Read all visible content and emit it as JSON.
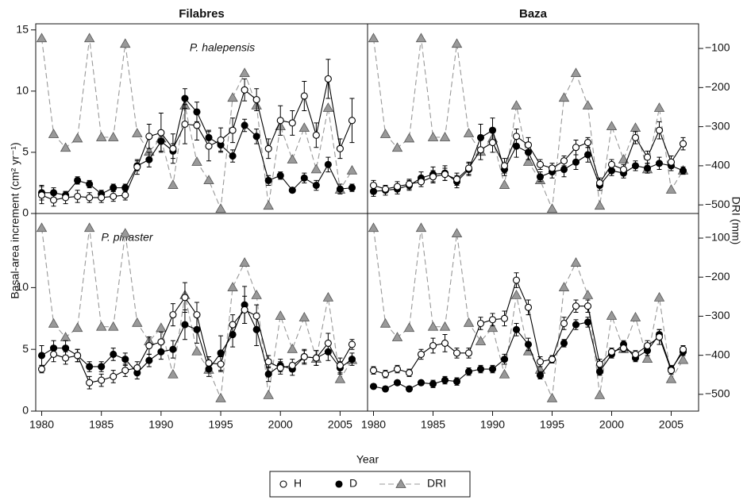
{
  "figure": {
    "ylabel": "Basal-area increment (cm² yr⁻¹)",
    "y2label": "DRI (mm)",
    "xlabel": "Year"
  },
  "chart_data": [
    {
      "type": "line",
      "title": "Filabres",
      "annotation": "P. halepensis",
      "x": [
        1980,
        1981,
        1982,
        1983,
        1984,
        1985,
        1986,
        1987,
        1988,
        1989,
        1990,
        1991,
        1992,
        1993,
        1994,
        1995,
        1996,
        1997,
        1998,
        1999,
        2000,
        2001,
        2002,
        2003,
        2004,
        2005,
        2006
      ],
      "xlim": [
        1979.5,
        2007.3
      ],
      "ylim": [
        0,
        15.5
      ],
      "yticks": [
        0,
        5,
        10,
        15
      ],
      "y2lim": [
        -522,
        -37
      ],
      "series": [
        {
          "name": "H",
          "color": "#ffffff",
          "marker": "circle",
          "values": [
            1.5,
            1.1,
            1.3,
            1.4,
            1.3,
            1.3,
            1.4,
            1.5,
            3.8,
            6.3,
            6.6,
            5.3,
            7.3,
            7.2,
            5.5,
            6.0,
            6.8,
            10.1,
            9.3,
            5.3,
            7.6,
            7.4,
            9.6,
            6.4,
            11.0,
            5.3,
            7.6
          ],
          "errors": [
            0.7,
            0.5,
            0.5,
            0.5,
            0.4,
            0.4,
            0.4,
            0.4,
            0.6,
            1.0,
            1.6,
            1.2,
            1.6,
            1.2,
            1.2,
            1.0,
            1.0,
            0.9,
            0.9,
            0.8,
            1.2,
            1.0,
            1.2,
            1.0,
            1.6,
            0.8,
            1.8
          ]
        },
        {
          "name": "D",
          "color": "#000000",
          "marker": "circle",
          "values": [
            1.7,
            1.7,
            1.5,
            2.7,
            2.4,
            1.6,
            2.1,
            2.1,
            3.9,
            4.4,
            5.9,
            5.1,
            9.4,
            8.3,
            6.2,
            5.6,
            4.7,
            7.2,
            6.3,
            2.7,
            3.1,
            1.9,
            2.9,
            2.3,
            4.0,
            2.0,
            2.1
          ],
          "errors": [
            0.6,
            0.4,
            0.3,
            0.3,
            0.3,
            0.3,
            0.3,
            0.3,
            0.4,
            0.6,
            0.8,
            0.6,
            0.8,
            0.8,
            0.6,
            0.5,
            0.5,
            0.5,
            0.6,
            0.4,
            0.3,
            0.2,
            0.4,
            0.4,
            0.6,
            0.4,
            0.3
          ]
        },
        {
          "name": "DRI",
          "color": "#999999",
          "marker": "triangle",
          "dashed": true,
          "axis": "y2",
          "values": [
            -74,
            -319,
            -354,
            -330,
            -74,
            -327,
            -327,
            -88,
            -317,
            -364,
            -330,
            -449,
            -246,
            -390,
            -437,
            -510,
            -226,
            -163,
            -246,
            -502,
            -299,
            -384,
            -303,
            -409,
            -252,
            -461,
            -412
          ]
        }
      ]
    },
    {
      "type": "line",
      "title": "Baza",
      "x": [
        1980,
        1981,
        1982,
        1983,
        1984,
        1985,
        1986,
        1987,
        1988,
        1989,
        1990,
        1991,
        1992,
        1993,
        1994,
        1995,
        1996,
        1997,
        1998,
        1999,
        2000,
        2001,
        2002,
        2003,
        2004,
        2005,
        2006
      ],
      "xlim": [
        1979.5,
        2007.3
      ],
      "ylim": [
        0,
        15.5
      ],
      "y2lim": [
        -522,
        -37
      ],
      "y2ticks": [
        {
          "value": -100,
          "label": "−100"
        },
        {
          "value": -200,
          "label": "−200"
        },
        {
          "value": -300,
          "label": "−300"
        },
        {
          "value": -400,
          "label": "−400"
        },
        {
          "value": -500,
          "label": "−500"
        }
      ],
      "series": [
        {
          "name": "H",
          "color": "#ffffff",
          "marker": "circle",
          "values": [
            2.3,
            2.0,
            2.2,
            2.4,
            2.6,
            3.0,
            3.2,
            2.8,
            3.7,
            5.2,
            5.8,
            3.9,
            6.3,
            5.6,
            4.0,
            3.7,
            4.3,
            5.4,
            5.8,
            2.5,
            4.0,
            3.6,
            6.2,
            4.6,
            6.8,
            4.2,
            5.7
          ],
          "errors": [
            0.4,
            0.3,
            0.4,
            0.4,
            0.4,
            0.5,
            0.5,
            0.5,
            0.5,
            0.8,
            0.8,
            0.6,
            0.6,
            0.6,
            0.4,
            0.4,
            0.4,
            0.6,
            0.4,
            0.4,
            0.4,
            0.4,
            0.5,
            0.5,
            0.7,
            0.5,
            0.5
          ]
        },
        {
          "name": "D",
          "color": "#000000",
          "marker": "circle",
          "values": [
            1.8,
            1.9,
            2.0,
            2.3,
            2.9,
            3.2,
            3.3,
            2.6,
            3.6,
            6.2,
            6.8,
            3.6,
            5.5,
            5.0,
            3.0,
            3.4,
            3.6,
            4.2,
            4.8,
            2.3,
            3.5,
            3.3,
            3.9,
            3.7,
            4.1,
            3.9,
            3.5
          ],
          "errors": [
            0.4,
            0.4,
            0.4,
            0.4,
            0.5,
            0.6,
            0.6,
            0.5,
            0.5,
            1.1,
            1.0,
            0.5,
            0.9,
            0.6,
            0.4,
            0.5,
            0.6,
            0.6,
            0.6,
            0.4,
            0.4,
            0.4,
            0.4,
            0.4,
            0.5,
            0.4,
            0.3
          ]
        },
        {
          "name": "DRI",
          "color": "#999999",
          "marker": "triangle",
          "dashed": true,
          "axis": "y2",
          "values": [
            -74,
            -319,
            -354,
            -330,
            -74,
            -327,
            -327,
            -88,
            -317,
            -364,
            -330,
            -449,
            -246,
            -390,
            -437,
            -510,
            -226,
            -163,
            -246,
            -502,
            -299,
            -384,
            -303,
            -409,
            -252,
            -461,
            -412
          ]
        }
      ]
    },
    {
      "type": "line",
      "annotation": "P. pinaster",
      "x": [
        1980,
        1981,
        1982,
        1983,
        1984,
        1985,
        1986,
        1987,
        1988,
        1989,
        1990,
        1991,
        1992,
        1993,
        1994,
        1995,
        1996,
        1997,
        1998,
        1999,
        2000,
        2001,
        2002,
        2003,
        2004,
        2005,
        2006
      ],
      "xlim": [
        1979.5,
        2007.3
      ],
      "xticks": [
        1980,
        1985,
        1990,
        1995,
        2000,
        2005
      ],
      "ylim": [
        0,
        16
      ],
      "yticks": [
        0,
        5,
        10
      ],
      "y2lim": [
        -543,
        -37
      ],
      "series": [
        {
          "name": "H",
          "color": "#ffffff",
          "marker": "circle",
          "values": [
            3.4,
            4.6,
            4.3,
            4.5,
            2.3,
            2.5,
            2.8,
            3.3,
            3.5,
            5.3,
            5.6,
            7.8,
            9.2,
            7.8,
            3.9,
            3.8,
            7.0,
            8.2,
            7.7,
            4.0,
            3.5,
            3.7,
            4.4,
            4.3,
            5.5,
            3.7,
            5.4
          ],
          "errors": [
            0.3,
            0.6,
            0.5,
            0.5,
            0.5,
            0.5,
            0.5,
            0.5,
            0.5,
            0.7,
            0.8,
            0.9,
            1.2,
            1.0,
            0.5,
            0.6,
            0.8,
            1.1,
            0.9,
            0.5,
            0.5,
            0.5,
            0.6,
            0.6,
            0.8,
            0.6,
            0.4
          ]
        },
        {
          "name": "D",
          "color": "#000000",
          "marker": "circle",
          "values": [
            4.5,
            5.1,
            5.1,
            4.5,
            3.6,
            3.6,
            4.6,
            4.2,
            3.1,
            4.1,
            4.8,
            5.0,
            7.0,
            6.6,
            3.4,
            4.7,
            6.2,
            8.6,
            6.6,
            3.0,
            3.7,
            3.4,
            4.4,
            4.3,
            4.8,
            3.5,
            4.2
          ],
          "errors": [
            0.8,
            0.6,
            0.6,
            0.5,
            0.4,
            0.4,
            0.5,
            0.5,
            0.5,
            0.5,
            0.6,
            0.7,
            1.2,
            1.1,
            0.6,
            1.4,
            1.0,
            1.5,
            1.3,
            0.6,
            0.5,
            0.5,
            0.5,
            0.6,
            0.7,
            0.5,
            0.5
          ]
        },
        {
          "name": "DRI",
          "color": "#999999",
          "marker": "triangle",
          "dashed": true,
          "axis": "y2",
          "values": [
            -74,
            -319,
            -354,
            -330,
            -74,
            -327,
            -327,
            -88,
            -317,
            -364,
            -330,
            -449,
            -246,
            -390,
            -437,
            -510,
            -226,
            -163,
            -246,
            -502,
            -299,
            -384,
            -303,
            -409,
            -252,
            -461,
            -412
          ]
        }
      ]
    },
    {
      "type": "line",
      "x": [
        1980,
        1981,
        1982,
        1983,
        1984,
        1985,
        1986,
        1987,
        1988,
        1989,
        1990,
        1991,
        1992,
        1993,
        1994,
        1995,
        1996,
        1997,
        1998,
        1999,
        2000,
        2001,
        2002,
        2003,
        2004,
        2005,
        2006
      ],
      "xlim": [
        1979.5,
        2007.3
      ],
      "xticks": [
        1980,
        1985,
        1990,
        1995,
        2000,
        2005
      ],
      "ylim": [
        0,
        16
      ],
      "y2lim": [
        -543,
        -37
      ],
      "y2ticks": [
        {
          "value": -100,
          "label": "−100"
        },
        {
          "value": -200,
          "label": "−200"
        },
        {
          "value": -300,
          "label": "−300"
        },
        {
          "value": -400,
          "label": "−400"
        },
        {
          "value": -500,
          "label": "−500"
        }
      ],
      "series": [
        {
          "name": "H",
          "color": "#ffffff",
          "marker": "circle",
          "values": [
            3.3,
            3.0,
            3.4,
            3.1,
            4.6,
            5.3,
            5.5,
            4.7,
            4.7,
            7.1,
            7.4,
            7.5,
            10.6,
            8.4,
            4.0,
            4.2,
            7.1,
            8.5,
            8.5,
            3.8,
            4.8,
            5.1,
            4.6,
            5.3,
            6.0,
            3.3,
            5.0
          ],
          "errors": [
            0.3,
            0.3,
            0.3,
            0.3,
            0.4,
            0.6,
            0.7,
            0.4,
            0.4,
            0.5,
            0.5,
            0.6,
            0.6,
            0.6,
            0.4,
            0.3,
            0.5,
            0.5,
            0.5,
            0.4,
            0.3,
            0.3,
            0.3,
            0.4,
            0.6,
            0.3,
            0.3
          ]
        },
        {
          "name": "D",
          "color": "#000000",
          "marker": "circle",
          "values": [
            2.0,
            1.8,
            2.3,
            1.8,
            2.3,
            2.2,
            2.5,
            2.4,
            3.2,
            3.4,
            3.4,
            4.2,
            6.6,
            5.4,
            2.9,
            4.2,
            5.5,
            7.0,
            7.2,
            3.2,
            4.6,
            5.4,
            4.3,
            4.9,
            6.2,
            3.4,
            4.8
          ],
          "errors": [
            0.2,
            0.2,
            0.2,
            0.2,
            0.2,
            0.3,
            0.3,
            0.3,
            0.3,
            0.3,
            0.3,
            0.4,
            0.5,
            0.5,
            0.3,
            0.3,
            0.3,
            0.4,
            0.4,
            0.3,
            0.3,
            0.3,
            0.3,
            0.4,
            0.4,
            0.3,
            0.3
          ]
        },
        {
          "name": "DRI",
          "color": "#999999",
          "marker": "triangle",
          "dashed": true,
          "axis": "y2",
          "values": [
            -74,
            -319,
            -354,
            -330,
            -74,
            -327,
            -327,
            -88,
            -317,
            -364,
            -330,
            -449,
            -246,
            -390,
            -437,
            -510,
            -226,
            -163,
            -246,
            -502,
            -299,
            -384,
            -303,
            -409,
            -252,
            -461,
            -412
          ]
        }
      ]
    }
  ]
}
